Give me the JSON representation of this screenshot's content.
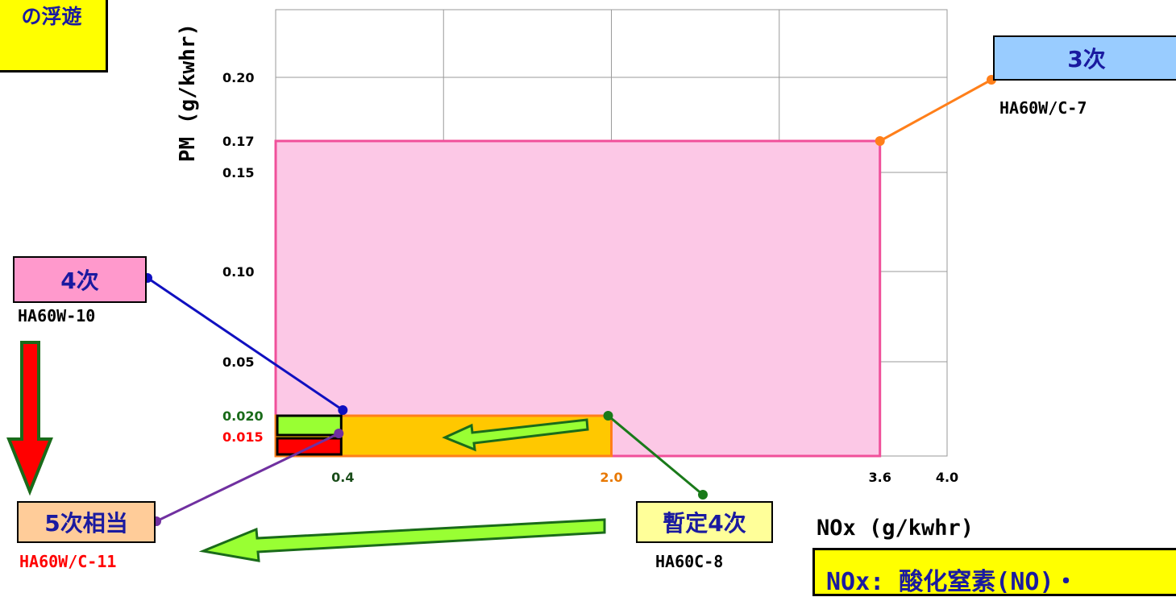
{
  "chart_data": {
    "type": "bar",
    "xlabel": "NOx (g/kwhr)",
    "ylabel": "PM (g/kwhr)",
    "xlim": [
      0,
      4.0
    ],
    "ylim": [
      0,
      0.2
    ],
    "grid": true,
    "x_ticks": [
      {
        "value": 0.4,
        "label": "0.4",
        "color": "#1a4d1a"
      },
      {
        "value": 2.0,
        "label": "2.0",
        "color": "#e87800"
      },
      {
        "value": 3.6,
        "label": "3.6",
        "color": "#000000"
      },
      {
        "value": 4.0,
        "label": "4.0",
        "color": "#000000"
      }
    ],
    "y_ticks": [
      {
        "value": 0.2,
        "label": "0.20",
        "color": "#000000"
      },
      {
        "value": 0.17,
        "label": "0.17",
        "color": "#000000"
      },
      {
        "value": 0.15,
        "label": "0.15",
        "color": "#000000"
      },
      {
        "value": 0.1,
        "label": "0.10",
        "color": "#000000"
      },
      {
        "value": 0.05,
        "label": "0.05",
        "color": "#000000"
      },
      {
        "value": 0.02,
        "label": "0.020",
        "color": "#1a6b1a"
      },
      {
        "value": 0.015,
        "label": "0.015",
        "color": "#ff0000"
      }
    ],
    "regions": [
      {
        "name": "3次",
        "code": "HA60W/C-7",
        "nox": 3.6,
        "pm": 0.17,
        "fill": "#fcc8e6",
        "stroke": "#f0509a"
      },
      {
        "name": "暫定4次",
        "code": "HA60C-8",
        "nox": 2.0,
        "pm": 0.02,
        "fill": "#ffc800",
        "stroke": "#ff7f1a"
      },
      {
        "name": "4次",
        "code": "HA60W-10",
        "nox": 0.4,
        "pm": 0.02,
        "fill": "#99ff33",
        "stroke": "#000000"
      },
      {
        "name": "5次相当",
        "code": "HA60W/C-11",
        "nox": 0.4,
        "pm": 0.015,
        "fill": "#ff0000",
        "stroke": "#000000"
      }
    ]
  },
  "labels": {
    "top_left_box": "の浮遊",
    "third_tier": "3次",
    "third_tier_code": "HA60W/C-7",
    "fourth_tier": "4次",
    "fourth_tier_code": "HA60W-10",
    "fifth_equiv": "5次相当",
    "fifth_equiv_code": "HA60W/C-11",
    "interim_fourth": "暫定4次",
    "interim_fourth_code": "HA60C-8",
    "bottom_box": "NOx:  酸化窒素(NO)・"
  },
  "colors": {
    "third_box": "#99ccff",
    "fourth_box": "#ff99cc",
    "fifth_box": "#ffcc99",
    "interim_box": "#ffff99",
    "yellow_box": "#ffff00",
    "arrow_fill": "#99ff33",
    "arrow_stroke": "#1a6b1a",
    "down_arrow_fill": "#ff0000"
  }
}
